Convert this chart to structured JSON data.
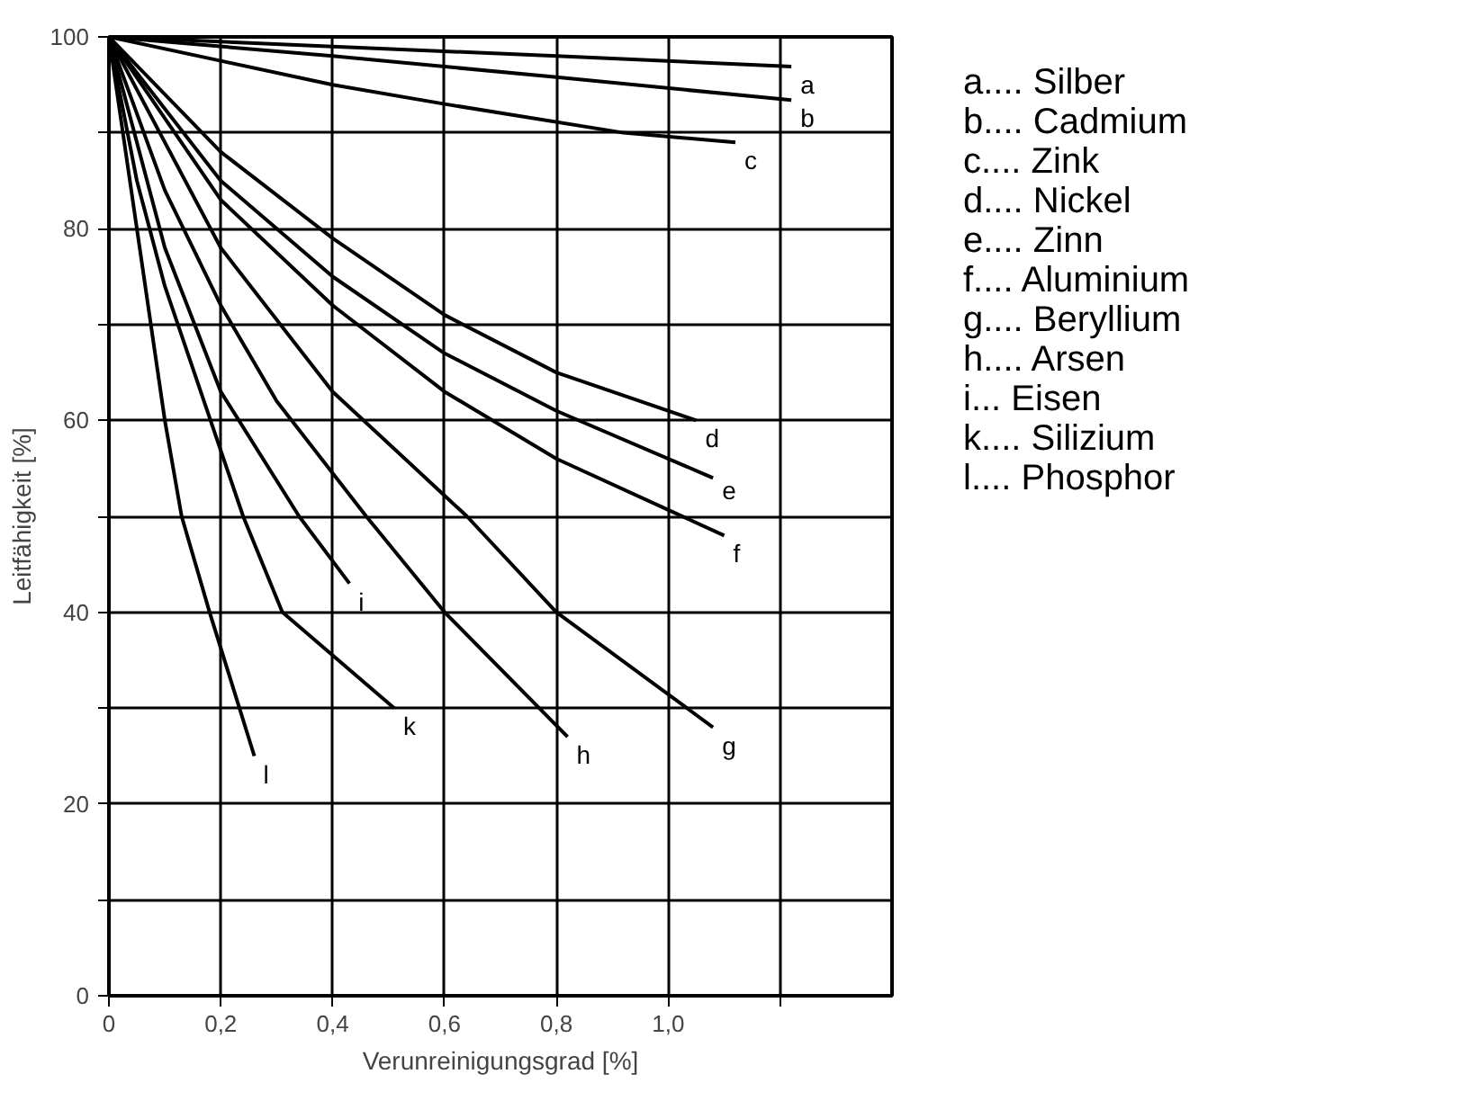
{
  "chart_data": {
    "type": "line",
    "xlabel": "Verunreinigungsgrad [%]",
    "ylabel": "Leitfähigkeit [%]",
    "xlim": [
      0,
      1.4
    ],
    "ylim": [
      0,
      100
    ],
    "xticks": [
      {
        "value": 0,
        "label": "0"
      },
      {
        "value": 0.2,
        "label": "0,2"
      },
      {
        "value": 0.4,
        "label": "0,4"
      },
      {
        "value": 0.6,
        "label": "0,6"
      },
      {
        "value": 0.8,
        "label": "0,8"
      },
      {
        "value": 1.0,
        "label": "1,0"
      },
      {
        "value": 1.2,
        "label": null
      }
    ],
    "yticks": [
      0,
      {
        "value": 10,
        "label": null
      },
      20,
      {
        "value": 30,
        "label": null
      },
      40,
      {
        "value": 50,
        "label": null
      },
      60,
      {
        "value": 70,
        "label": null
      },
      80,
      {
        "value": 90,
        "label": null
      },
      100
    ],
    "grid": true,
    "legend": false,
    "marker": "none",
    "line_style": "solid",
    "series": [
      {
        "name": "a",
        "color": "#000000",
        "x": [
          0,
          0.4,
          0.8,
          1.22
        ],
        "values": [
          100,
          99,
          98,
          96.9
        ]
      },
      {
        "name": "b",
        "color": "#000000",
        "x": [
          0,
          0.4,
          0.8,
          1.22
        ],
        "values": [
          100,
          98,
          95.8,
          93.4
        ]
      },
      {
        "name": "c",
        "color": "#000000",
        "x": [
          0,
          0.2,
          0.4,
          0.6,
          0.92,
          1.12
        ],
        "values": [
          100,
          97.5,
          95,
          93,
          90,
          89
        ]
      },
      {
        "name": "d",
        "color": "#000000",
        "x": [
          0,
          0.2,
          0.4,
          0.6,
          0.8,
          1.05
        ],
        "values": [
          100,
          88,
          79,
          71,
          65,
          60
        ]
      },
      {
        "name": "e",
        "color": "#000000",
        "x": [
          0,
          0.2,
          0.4,
          0.6,
          0.8,
          1.08
        ],
        "values": [
          100,
          85,
          75,
          67,
          61,
          54
        ]
      },
      {
        "name": "f",
        "color": "#000000",
        "x": [
          0,
          0.2,
          0.4,
          0.6,
          0.8,
          1.1
        ],
        "values": [
          100,
          83,
          72,
          63,
          56,
          48
        ]
      },
      {
        "name": "g",
        "color": "#000000",
        "x": [
          0,
          0.2,
          0.4,
          0.64,
          0.8,
          1.08
        ],
        "values": [
          100,
          78,
          63,
          50,
          40,
          28
        ]
      },
      {
        "name": "h",
        "color": "#000000",
        "x": [
          0,
          0.1,
          0.2,
          0.3,
          0.46,
          0.6,
          0.82
        ],
        "values": [
          100,
          84,
          72,
          62,
          50,
          40,
          27
        ]
      },
      {
        "name": "i",
        "color": "#000000",
        "x": [
          0,
          0.1,
          0.2,
          0.34,
          0.43
        ],
        "values": [
          100,
          78,
          63,
          50,
          43
        ]
      },
      {
        "name": "k",
        "color": "#000000",
        "x": [
          0,
          0.05,
          0.1,
          0.24,
          0.31,
          0.51
        ],
        "values": [
          100,
          85,
          74,
          50,
          40,
          30
        ]
      },
      {
        "name": "l",
        "color": "#000000",
        "x": [
          0,
          0.05,
          0.1,
          0.13,
          0.18,
          0.26
        ],
        "values": [
          100,
          80,
          60,
          50,
          40,
          25
        ]
      }
    ],
    "annotations": [
      "a.... Silber",
      "b.... Cadmium",
      "c.... Zink",
      "d.... Nickel",
      "e.... Zinn",
      "f.... Aluminium",
      "g.... Beryllium",
      "h.... Arsen",
      "i... Eisen",
      "k.... Silizium",
      "l.... Phosphor"
    ]
  }
}
